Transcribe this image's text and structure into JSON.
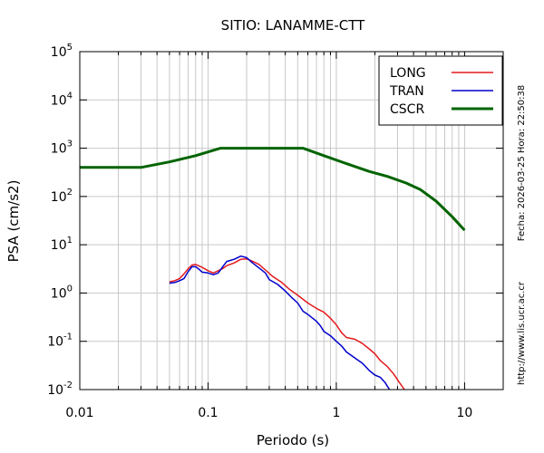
{
  "chart_data": {
    "type": "line",
    "title": "SITIO: LANAMME-CTT",
    "xlabel": "Periodo (s)",
    "ylabel": "PSA (cm/s2)",
    "x_scale": "log",
    "y_scale": "log",
    "xlim": [
      0.01,
      20
    ],
    "ylim": [
      0.01,
      100000
    ],
    "grid": true,
    "legend_position": "top-right",
    "x_ticks": [
      {
        "value": 0.01,
        "label": "0.01"
      },
      {
        "value": 0.1,
        "label": "0.1"
      },
      {
        "value": 1,
        "label": "1"
      },
      {
        "value": 10,
        "label": "10"
      }
    ],
    "y_ticks": [
      {
        "value": 0.01,
        "base": "10",
        "exp": "-2"
      },
      {
        "value": 0.1,
        "base": "10",
        "exp": "-1"
      },
      {
        "value": 1,
        "base": "10",
        "exp": "0"
      },
      {
        "value": 10,
        "base": "10",
        "exp": "1"
      },
      {
        "value": 100,
        "base": "10",
        "exp": "2"
      },
      {
        "value": 1000,
        "base": "10",
        "exp": "3"
      },
      {
        "value": 10000,
        "base": "10",
        "exp": "4"
      },
      {
        "value": 100000,
        "base": "10",
        "exp": "5"
      }
    ],
    "series": [
      {
        "name": "LONG",
        "color": "#e41a1c",
        "points": [
          [
            0.05,
            1.7
          ],
          [
            0.055,
            1.8
          ],
          [
            0.06,
            2.0
          ],
          [
            0.065,
            2.5
          ],
          [
            0.07,
            3.2
          ],
          [
            0.075,
            3.8
          ],
          [
            0.08,
            3.9
          ],
          [
            0.09,
            3.4
          ],
          [
            0.1,
            2.9
          ],
          [
            0.11,
            2.6
          ],
          [
            0.12,
            2.9
          ],
          [
            0.13,
            3.2
          ],
          [
            0.14,
            3.7
          ],
          [
            0.16,
            4.2
          ],
          [
            0.18,
            5.0
          ],
          [
            0.2,
            5.1
          ],
          [
            0.22,
            4.6
          ],
          [
            0.25,
            3.9
          ],
          [
            0.28,
            3.0
          ],
          [
            0.32,
            2.2
          ],
          [
            0.37,
            1.7
          ],
          [
            0.43,
            1.2
          ],
          [
            0.5,
            0.9
          ],
          [
            0.6,
            0.62
          ],
          [
            0.7,
            0.48
          ],
          [
            0.8,
            0.4
          ],
          [
            0.9,
            0.3
          ],
          [
            1.0,
            0.22
          ],
          [
            1.1,
            0.15
          ],
          [
            1.2,
            0.12
          ],
          [
            1.4,
            0.11
          ],
          [
            1.6,
            0.09
          ],
          [
            1.8,
            0.07
          ],
          [
            2.0,
            0.055
          ],
          [
            2.2,
            0.04
          ],
          [
            2.5,
            0.03
          ],
          [
            2.8,
            0.021
          ],
          [
            3.1,
            0.014
          ],
          [
            3.4,
            0.01
          ]
        ]
      },
      {
        "name": "TRAN",
        "color": "#0000cc",
        "points": [
          [
            0.05,
            1.6
          ],
          [
            0.055,
            1.65
          ],
          [
            0.06,
            1.8
          ],
          [
            0.065,
            2.0
          ],
          [
            0.07,
            2.8
          ],
          [
            0.075,
            3.5
          ],
          [
            0.08,
            3.5
          ],
          [
            0.085,
            3.1
          ],
          [
            0.09,
            2.7
          ],
          [
            0.1,
            2.6
          ],
          [
            0.11,
            2.4
          ],
          [
            0.12,
            2.6
          ],
          [
            0.13,
            3.5
          ],
          [
            0.14,
            4.5
          ],
          [
            0.16,
            5.0
          ],
          [
            0.18,
            5.8
          ],
          [
            0.2,
            5.4
          ],
          [
            0.22,
            4.3
          ],
          [
            0.25,
            3.3
          ],
          [
            0.28,
            2.6
          ],
          [
            0.3,
            1.9
          ],
          [
            0.35,
            1.5
          ],
          [
            0.4,
            1.1
          ],
          [
            0.45,
            0.8
          ],
          [
            0.5,
            0.62
          ],
          [
            0.55,
            0.42
          ],
          [
            0.6,
            0.36
          ],
          [
            0.7,
            0.26
          ],
          [
            0.75,
            0.21
          ],
          [
            0.8,
            0.16
          ],
          [
            0.9,
            0.13
          ],
          [
            1.0,
            0.1
          ],
          [
            1.1,
            0.08
          ],
          [
            1.2,
            0.06
          ],
          [
            1.4,
            0.045
          ],
          [
            1.6,
            0.035
          ],
          [
            1.8,
            0.025
          ],
          [
            2.0,
            0.02
          ],
          [
            2.2,
            0.018
          ],
          [
            2.4,
            0.014
          ],
          [
            2.6,
            0.01
          ]
        ]
      },
      {
        "name": "CSCR",
        "color": "#006400",
        "points": [
          [
            0.01,
            400
          ],
          [
            0.03,
            400
          ],
          [
            0.05,
            520
          ],
          [
            0.08,
            700
          ],
          [
            0.125,
            1000
          ],
          [
            0.2,
            1000
          ],
          [
            0.3,
            1000
          ],
          [
            0.55,
            1000
          ],
          [
            0.8,
            700
          ],
          [
            1.2,
            480
          ],
          [
            1.8,
            330
          ],
          [
            2.5,
            260
          ],
          [
            3.5,
            190
          ],
          [
            4.5,
            140
          ],
          [
            6,
            80
          ],
          [
            8,
            38
          ],
          [
            10,
            20
          ]
        ]
      }
    ]
  },
  "side_texts": {
    "date": "Fecha: 2026-03-25 Hora: 22:50:38",
    "url": "http://www.lis.ucr.ac.cr"
  }
}
